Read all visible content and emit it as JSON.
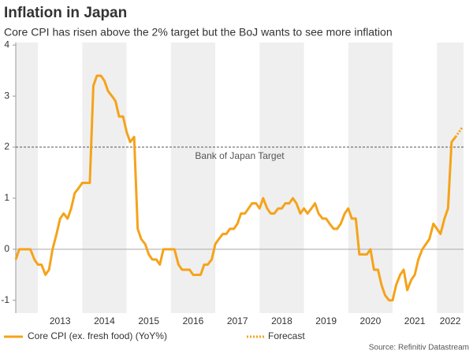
{
  "chart_data": {
    "type": "line",
    "title": "Inflation in Japan",
    "subtitle": "Core CPI has risen above the 2% target but the BoJ wants to see more inflation",
    "source": "Source: Refinitiv Datastream",
    "x": [
      2012.5,
      2012.58,
      2012.67,
      2012.75,
      2012.83,
      2012.92,
      2013.0,
      2013.08,
      2013.17,
      2013.25,
      2013.33,
      2013.42,
      2013.5,
      2013.58,
      2013.67,
      2013.75,
      2013.83,
      2013.92,
      2014.0,
      2014.08,
      2014.17,
      2014.25,
      2014.33,
      2014.42,
      2014.5,
      2014.58,
      2014.67,
      2014.75,
      2014.83,
      2014.92,
      2015.0,
      2015.08,
      2015.17,
      2015.25,
      2015.33,
      2015.42,
      2015.5,
      2015.58,
      2015.67,
      2015.75,
      2015.83,
      2015.92,
      2016.0,
      2016.08,
      2016.17,
      2016.25,
      2016.33,
      2016.42,
      2016.5,
      2016.58,
      2016.67,
      2016.75,
      2016.83,
      2016.92,
      2017.0,
      2017.08,
      2017.17,
      2017.25,
      2017.33,
      2017.42,
      2017.5,
      2017.58,
      2017.67,
      2017.75,
      2017.83,
      2017.92,
      2018.0,
      2018.08,
      2018.17,
      2018.25,
      2018.33,
      2018.42,
      2018.5,
      2018.58,
      2018.67,
      2018.75,
      2018.83,
      2018.92,
      2019.0,
      2019.08,
      2019.17,
      2019.25,
      2019.33,
      2019.42,
      2019.5,
      2019.58,
      2019.67,
      2019.75,
      2019.83,
      2019.92,
      2020.0,
      2020.08,
      2020.17,
      2020.25,
      2020.33,
      2020.42,
      2020.5,
      2020.58,
      2020.67,
      2020.75,
      2020.83,
      2020.92,
      2021.0,
      2021.08,
      2021.17,
      2021.25,
      2021.33,
      2021.42,
      2021.5,
      2021.58,
      2021.67,
      2021.75,
      2021.83,
      2021.92,
      2022.0,
      2022.08,
      2022.17,
      2022.25,
      2022.33,
      2022.42
    ],
    "series": [
      {
        "name": "Core CPI (ex. fresh food) (YoY%)",
        "color": "#f5a31a",
        "style": "solid",
        "values": [
          -0.2,
          0,
          0,
          0,
          0,
          -0.2,
          -0.3,
          -0.3,
          -0.5,
          -0.4,
          0,
          0.3,
          0.6,
          0.7,
          0.6,
          0.8,
          1.1,
          1.2,
          1.3,
          1.3,
          1.3,
          3.2,
          3.4,
          3.4,
          3.3,
          3.1,
          3.0,
          2.9,
          2.6,
          2.6,
          2.3,
          2.1,
          2.2,
          0.4,
          0.2,
          0.1,
          -0.1,
          -0.2,
          -0.2,
          -0.3,
          0,
          0,
          0,
          0,
          -0.3,
          -0.4,
          -0.4,
          -0.4,
          -0.5,
          -0.5,
          -0.5,
          -0.3,
          -0.3,
          -0.2,
          0.1,
          0.2,
          0.3,
          0.3,
          0.4,
          0.4,
          0.5,
          0.7,
          0.7,
          0.8,
          0.9,
          0.9,
          0.8,
          1.0,
          0.8,
          0.7,
          0.7,
          0.8,
          0.8,
          0.9,
          0.9,
          1.0,
          0.9,
          0.7,
          0.8,
          0.7,
          0.8,
          0.9,
          0.7,
          0.6,
          0.6,
          0.5,
          0.4,
          0.4,
          0.5,
          0.7,
          0.8,
          0.6,
          0.6,
          -0.1,
          -0.1,
          -0.1,
          0,
          -0.4,
          -0.4,
          -0.7,
          -0.9,
          -1.0,
          -1.0,
          -0.7,
          -0.5,
          -0.4,
          -0.8,
          -0.6,
          -0.5,
          -0.2,
          0,
          0.1,
          0.2,
          0.5,
          0.4,
          0.3,
          0.6,
          0.8,
          2.1,
          2.2
        ]
      },
      {
        "name": "Forecast",
        "color": "#f5a31a",
        "style": "dotted",
        "x": [
          2022.42,
          2022.5,
          2022.58
        ],
        "values": [
          2.2,
          2.3,
          2.4
        ]
      }
    ],
    "target": {
      "value": 2,
      "label": "Bank of Japan Target"
    },
    "xlim": [
      2012.5,
      2022.6
    ],
    "xticks": [
      {
        "value": 2013.5,
        "label": "2013"
      },
      {
        "value": 2014.5,
        "label": "2014"
      },
      {
        "value": 2015.5,
        "label": "2015"
      },
      {
        "value": 2016.5,
        "label": "2016"
      },
      {
        "value": 2017.5,
        "label": "2017"
      },
      {
        "value": 2018.5,
        "label": "2018"
      },
      {
        "value": 2019.5,
        "label": "2019"
      },
      {
        "value": 2020.5,
        "label": "2020"
      },
      {
        "value": 2021.5,
        "label": "2021"
      },
      {
        "value": 2022.3,
        "label": "2022"
      }
    ],
    "ylim": [
      -1.25,
      4.05
    ],
    "yticks": [
      -1,
      0,
      1,
      2,
      3,
      4
    ],
    "shade_alternate_years": true,
    "legend": "bottom"
  }
}
